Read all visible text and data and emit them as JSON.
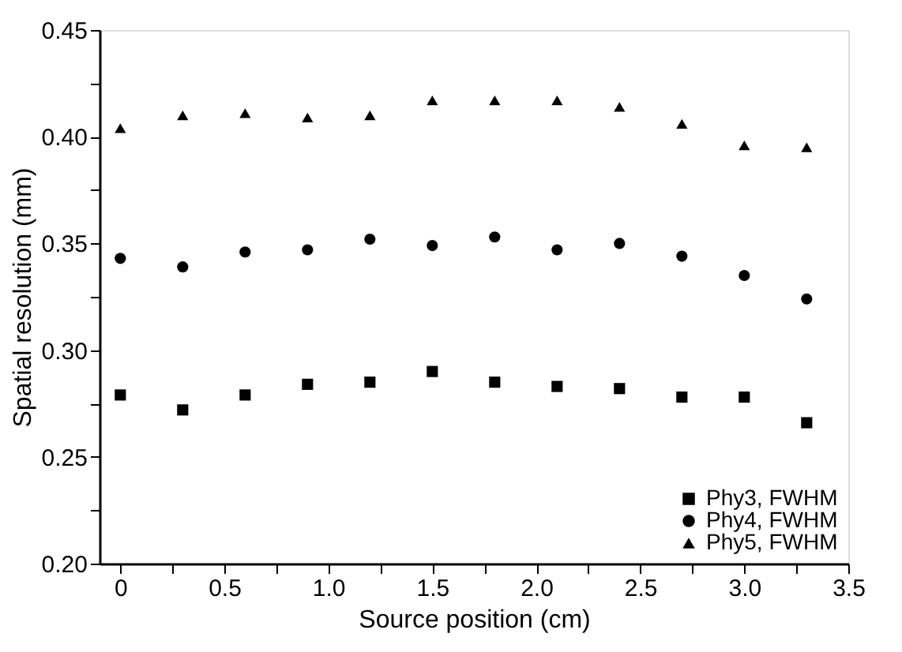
{
  "chart_data": {
    "type": "scatter",
    "xlabel": "Source position (cm)",
    "ylabel": "Spatial resolution (mm)",
    "x": [
      0,
      0.3,
      0.6,
      0.9,
      1.2,
      1.5,
      1.8,
      2.1,
      2.4,
      2.7,
      3.0,
      3.3
    ],
    "series": [
      {
        "name": "Phy3, FWHM",
        "color": "#000000",
        "marker": "square",
        "values": [
          0.279,
          0.272,
          0.279,
          0.284,
          0.285,
          0.29,
          0.285,
          0.283,
          0.282,
          0.278,
          0.278,
          0.266
        ]
      },
      {
        "name": "Phy4, FWHM",
        "color": "#000000",
        "marker": "circle",
        "values": [
          0.343,
          0.339,
          0.346,
          0.347,
          0.352,
          0.349,
          0.353,
          0.347,
          0.35,
          0.344,
          0.335,
          0.324
        ]
      },
      {
        "name": "Phy5, FWHM",
        "color": "#000000",
        "marker": "triangle",
        "values": [
          0.404,
          0.41,
          0.411,
          0.409,
          0.41,
          0.417,
          0.417,
          0.417,
          0.414,
          0.406,
          0.396,
          0.395
        ]
      }
    ],
    "xlim": [
      -0.1,
      3.5
    ],
    "xticks": [
      0,
      {
        "value": 0.25,
        "label": null
      },
      0.5,
      {
        "value": 0.75,
        "label": null
      },
      {
        "value": 1,
        "label": "1.0"
      },
      {
        "value": 1.25,
        "label": null
      },
      1.5,
      {
        "value": 1.75,
        "label": null
      },
      {
        "value": 2,
        "label": "2.0"
      },
      {
        "value": 2.25,
        "label": null
      },
      2.5,
      {
        "value": 2.75,
        "label": null
      },
      {
        "value": 3,
        "label": "3.0"
      },
      {
        "value": 3.25,
        "label": null
      },
      3.5
    ],
    "ylim": [
      0.2,
      0.45
    ],
    "yticks": [
      {
        "value": 0.2,
        "label": "0.20"
      },
      {
        "value": 0.225,
        "label": null
      },
      0.25,
      {
        "value": 0.275,
        "label": null
      },
      {
        "value": 0.3,
        "label": "0.30"
      },
      {
        "value": 0.325,
        "label": null
      },
      0.35,
      {
        "value": 0.375,
        "label": null
      },
      {
        "value": 0.4,
        "label": "0.40"
      },
      {
        "value": 0.425,
        "label": null
      },
      0.45
    ],
    "grid": false,
    "legend": "bottom right"
  }
}
